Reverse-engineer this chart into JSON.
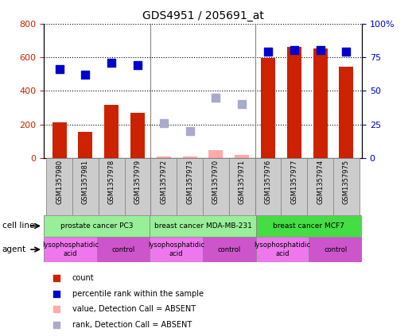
{
  "title": "GDS4951 / 205691_at",
  "samples": [
    "GSM1357980",
    "GSM1357981",
    "GSM1357978",
    "GSM1357979",
    "GSM1357972",
    "GSM1357973",
    "GSM1357970",
    "GSM1357971",
    "GSM1357976",
    "GSM1357977",
    "GSM1357974",
    "GSM1357975"
  ],
  "counts": [
    210,
    155,
    315,
    270,
    null,
    null,
    null,
    null,
    595,
    660,
    650,
    545
  ],
  "counts_absent": [
    null,
    null,
    null,
    null,
    10,
    10,
    45,
    20,
    null,
    null,
    null,
    null
  ],
  "ranks_pct": [
    66,
    62,
    71,
    69,
    null,
    null,
    null,
    null,
    79,
    80,
    80,
    79
  ],
  "ranks_absent_pct": [
    null,
    null,
    null,
    null,
    26,
    20,
    45,
    40,
    null,
    null,
    null,
    null
  ],
  "ylim_left": [
    0,
    800
  ],
  "ylim_right": [
    0,
    100
  ],
  "yticks_left": [
    0,
    200,
    400,
    600,
    800
  ],
  "yticks_right": [
    0,
    25,
    50,
    75,
    100
  ],
  "yticklabels_right": [
    "0",
    "25",
    "50",
    "75",
    "100%"
  ],
  "bar_color": "#cc2200",
  "bar_absent_color": "#ffaaaa",
  "dot_color": "#0000cc",
  "dot_absent_color": "#aaaacc",
  "cell_line_groups": [
    {
      "label": "prostate cancer PC3",
      "start": 0,
      "end": 4,
      "color": "#99ee99"
    },
    {
      "label": "breast cancer MDA-MB-231",
      "start": 4,
      "end": 8,
      "color": "#99ee99"
    },
    {
      "label": "breast cancer MCF7",
      "start": 8,
      "end": 12,
      "color": "#44dd44"
    }
  ],
  "agent_groups": [
    {
      "label": "lysophosphatidic\nacid",
      "start": 0,
      "end": 2,
      "color": "#ee77ee"
    },
    {
      "label": "control",
      "start": 2,
      "end": 4,
      "color": "#cc55cc"
    },
    {
      "label": "lysophosphatidic\nacid",
      "start": 4,
      "end": 6,
      "color": "#ee77ee"
    },
    {
      "label": "control",
      "start": 6,
      "end": 8,
      "color": "#cc55cc"
    },
    {
      "label": "lysophosphatidic\nacid",
      "start": 8,
      "end": 10,
      "color": "#ee77ee"
    },
    {
      "label": "control",
      "start": 10,
      "end": 12,
      "color": "#cc55cc"
    }
  ],
  "group_boundaries": [
    3.5,
    7.5
  ],
  "legend_items": [
    {
      "label": "count",
      "color": "#cc2200"
    },
    {
      "label": "percentile rank within the sample",
      "color": "#0000cc"
    },
    {
      "label": "value, Detection Call = ABSENT",
      "color": "#ffaaaa"
    },
    {
      "label": "rank, Detection Call = ABSENT",
      "color": "#aaaacc"
    }
  ],
  "bg_color": "#ffffff",
  "tick_color_left": "#cc2200",
  "tick_color_right": "#0000cc",
  "bar_width": 0.55,
  "dot_size": 45,
  "sample_bg_color": "#cccccc",
  "sample_border_color": "#888888"
}
